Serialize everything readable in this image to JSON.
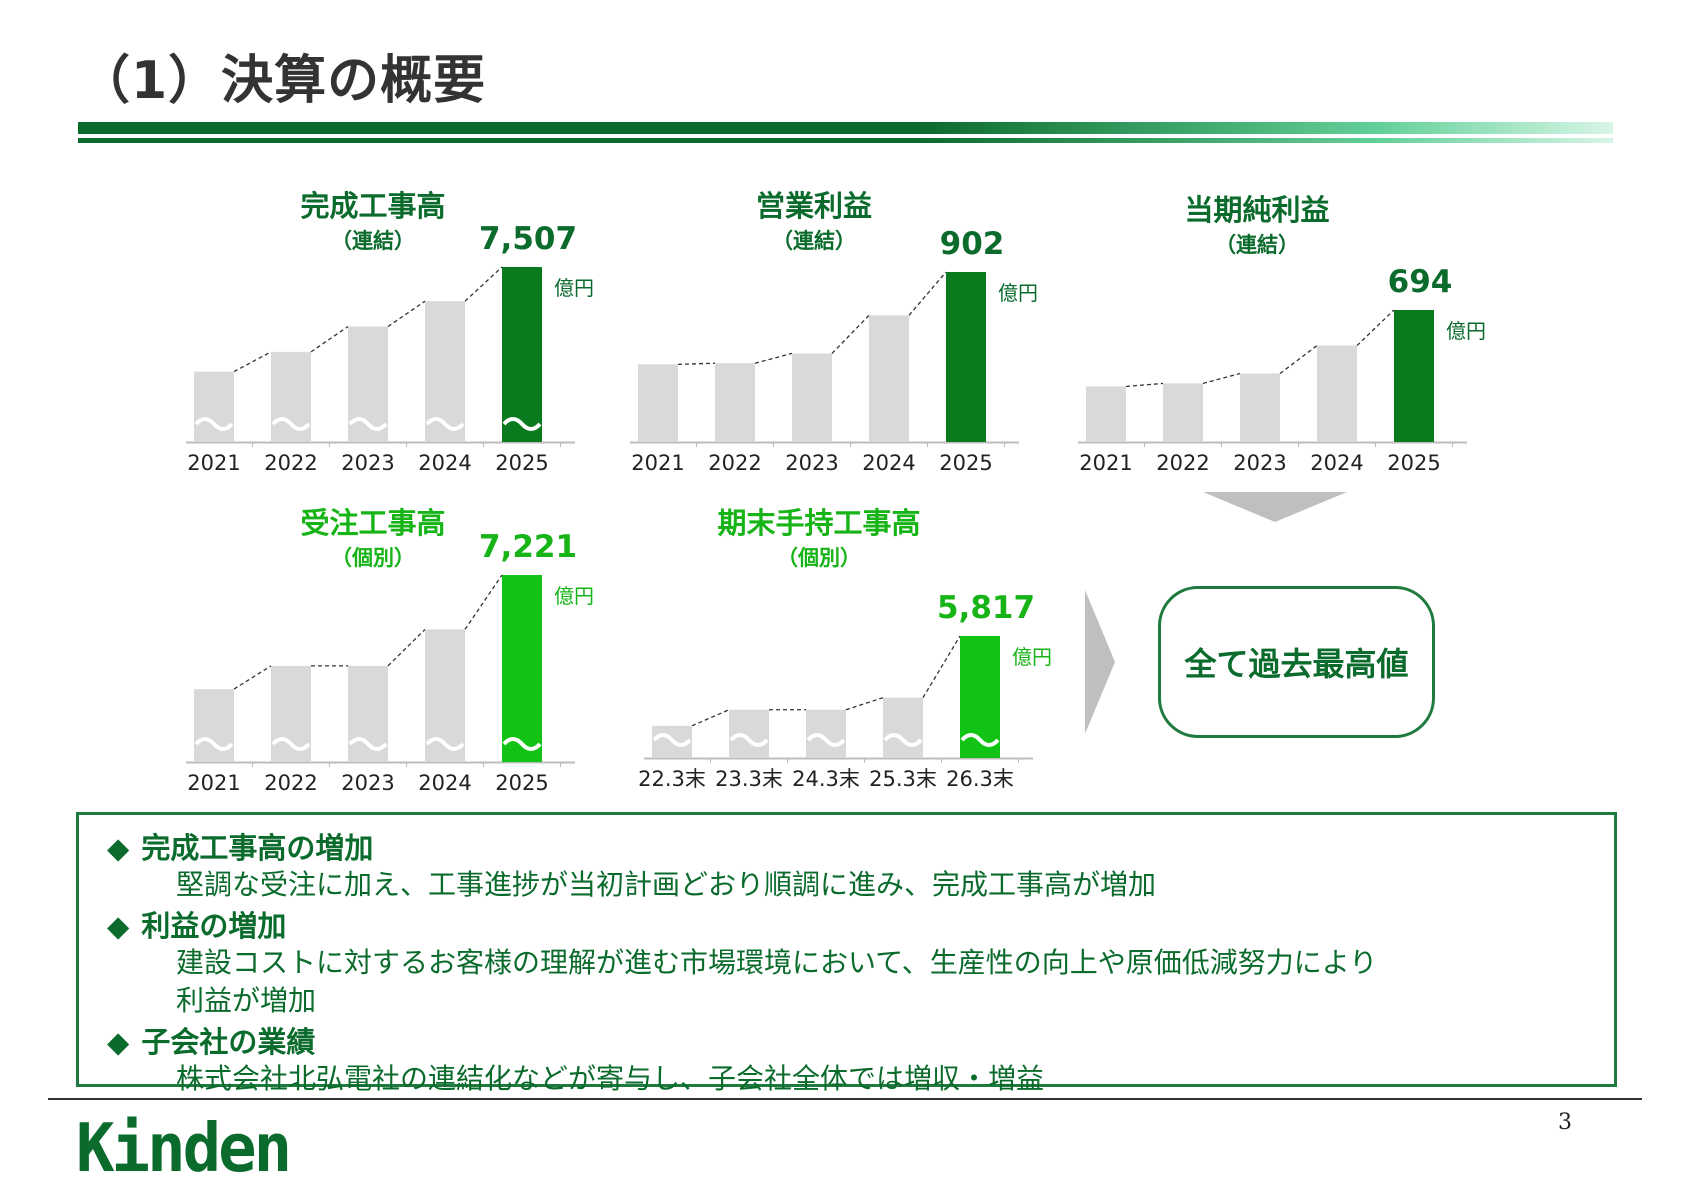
{
  "title": "（1）決算の概要",
  "chart_data": [
    {
      "type": "bar",
      "title": "完成工事高",
      "subtitle": "（連結）",
      "categories": [
        "2021",
        "2022",
        "2023",
        "2024",
        "2025"
      ],
      "values": [
        5650,
        6000,
        6450,
        6900,
        7507
      ],
      "highlight_label": "7,507",
      "unit": "億円",
      "axis_break": true,
      "color": "#0a7a1e"
    },
    {
      "type": "bar",
      "title": "営業利益",
      "subtitle": "（連結）",
      "categories": [
        "2021",
        "2022",
        "2023",
        "2024",
        "2025"
      ],
      "values": [
        412,
        418,
        470,
        672,
        902
      ],
      "highlight_label": "902",
      "unit": "億円",
      "axis_break": false,
      "color": "#0a7a1e"
    },
    {
      "type": "bar",
      "title": "当期純利益",
      "subtitle": "（連結）",
      "categories": [
        "2021",
        "2022",
        "2023",
        "2024",
        "2025"
      ],
      "values": [
        292,
        308,
        360,
        507,
        694
      ],
      "highlight_label": "694",
      "unit": "億円",
      "axis_break": false,
      "color": "#0a7a1e"
    },
    {
      "type": "bar",
      "title": "受注工事高",
      "subtitle": "（個別）",
      "categories": [
        "2021",
        "2022",
        "2023",
        "2024",
        "2025"
      ],
      "values": [
        5500,
        5850,
        5850,
        6400,
        7221
      ],
      "highlight_label": "7,221",
      "unit": "億円",
      "axis_break": true,
      "color": "#11c414"
    },
    {
      "type": "bar",
      "title": "期末手持工事高",
      "subtitle": "（個別）",
      "categories": [
        "22.3末",
        "23.3末",
        "24.3末",
        "25.3末",
        "26.3末"
      ],
      "values": [
        4700,
        4900,
        4900,
        5050,
        5817
      ],
      "highlight_label": "5,817",
      "unit": "億円",
      "axis_break": true,
      "color": "#11c414"
    }
  ],
  "record_label": "全て過去最高値",
  "notes": [
    {
      "head": "完成工事高の増加",
      "lines": [
        "堅調な受注に加え、工事進捗が当初計画どおり順調に進み、完成工事高が増加"
      ]
    },
    {
      "head": "利益の増加",
      "lines": [
        "建設コストに対するお客様の理解が進む市場環境において、生産性の向上や原価低減努力により",
        "利益が増加"
      ]
    },
    {
      "head": "子会社の業績",
      "lines": [
        "株式会社北弘電社の連結化などが寄与し、子会社全体では増収・増益"
      ]
    }
  ],
  "bullet": "◆",
  "logo_text": "Kinden",
  "page_number": "3"
}
